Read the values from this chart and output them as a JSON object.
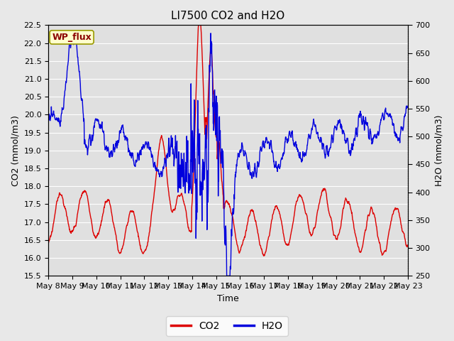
{
  "title": "LI7500 CO2 and H2O",
  "xlabel": "Time",
  "ylabel_left": "CO2 (mmol/m3)",
  "ylabel_right": "H2O (mmol/m3)",
  "co2_ylim": [
    15.5,
    22.5
  ],
  "h2o_ylim": [
    250,
    700
  ],
  "co2_yticks": [
    15.5,
    16.0,
    16.5,
    17.0,
    17.5,
    18.0,
    18.5,
    19.0,
    19.5,
    20.0,
    20.5,
    21.0,
    21.5,
    22.0,
    22.5
  ],
  "h2o_yticks": [
    250,
    300,
    350,
    400,
    450,
    500,
    550,
    600,
    650,
    700
  ],
  "xtick_labels": [
    "May 8",
    "May 9",
    "May 10",
    "May 11",
    "May 12",
    "May 13",
    "May 14",
    "May 15",
    "May 16",
    "May 17",
    "May 18",
    "May 19",
    "May 20",
    "May 21",
    "May 22",
    "May 23"
  ],
  "annotation_text": "WP_flux",
  "co2_color": "#dd0000",
  "h2o_color": "#0000dd",
  "fig_bg_color": "#e8e8e8",
  "plot_bg_color": "#e0e0e0",
  "grid_color": "#ffffff",
  "title_fontsize": 11,
  "axis_fontsize": 9,
  "tick_fontsize": 8,
  "legend_fontsize": 10,
  "line_width": 1.0
}
